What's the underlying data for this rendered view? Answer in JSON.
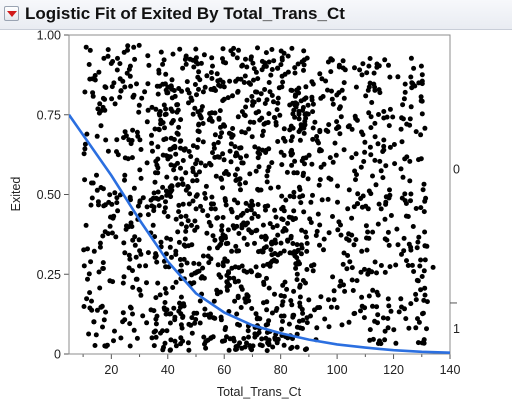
{
  "title": "Logistic Fit of Exited By Total_Trans_Ct",
  "chart_data": {
    "type": "scatter",
    "title": "Logistic Fit of Exited By Total_Trans_Ct",
    "xlabel": "Total_Trans_Ct",
    "ylabel": "Exited",
    "xlim": [
      5,
      140
    ],
    "ylim": [
      0,
      1
    ],
    "x_ticks": [
      "20",
      "40",
      "60",
      "80",
      "100",
      "120",
      "140"
    ],
    "y_ticks": [
      "0",
      "0.25",
      "0.50",
      "0.75",
      "1.00"
    ],
    "right_axis_labels": [
      "0",
      "1"
    ],
    "right_axis_split": 0.16,
    "point_color": "#000000",
    "curve_color": "#2b6fe0",
    "fit_curve": [
      {
        "x": 5,
        "y": 0.75
      },
      {
        "x": 20,
        "y": 0.56
      },
      {
        "x": 30,
        "y": 0.42
      },
      {
        "x": 40,
        "y": 0.29
      },
      {
        "x": 50,
        "y": 0.19
      },
      {
        "x": 60,
        "y": 0.13
      },
      {
        "x": 70,
        "y": 0.09
      },
      {
        "x": 80,
        "y": 0.065
      },
      {
        "x": 90,
        "y": 0.045
      },
      {
        "x": 100,
        "y": 0.03
      },
      {
        "x": 110,
        "y": 0.02
      },
      {
        "x": 120,
        "y": 0.012
      },
      {
        "x": 130,
        "y": 0.007
      },
      {
        "x": 140,
        "y": 0.004
      }
    ],
    "scatter_regions": [
      {
        "xmin": 10,
        "xmax": 35,
        "ymin": 0.02,
        "ymax": 0.97,
        "count": 230
      },
      {
        "xmin": 35,
        "xmax": 90,
        "ymin": 0.01,
        "ymax": 0.96,
        "count": 950
      },
      {
        "xmin": 90,
        "xmax": 132,
        "ymin": 0.03,
        "ymax": 0.93,
        "count": 380
      },
      {
        "xmin": 132,
        "xmax": 140,
        "ymin": 0.2,
        "ymax": 0.3,
        "count": 1
      }
    ]
  }
}
